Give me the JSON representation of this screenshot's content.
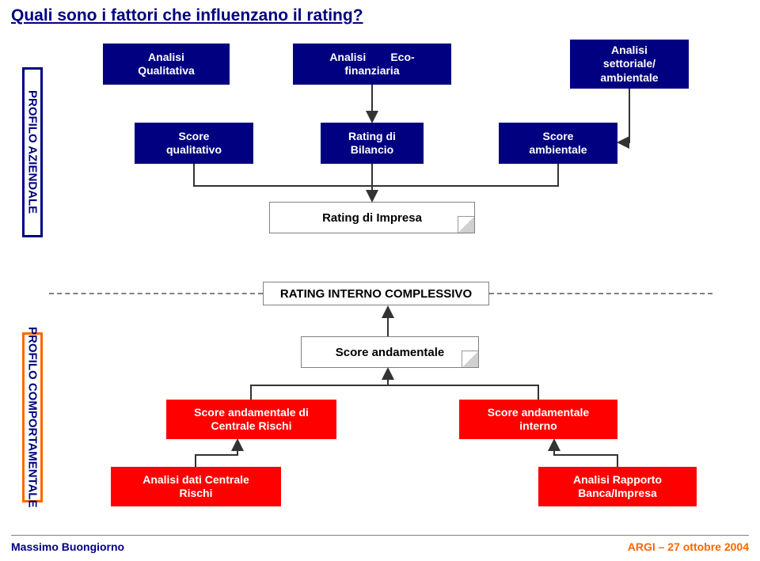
{
  "title": "Quali sono i fattori che influenzano il rating?",
  "sideLabels": {
    "top": "PROFILO AZIENDALE",
    "bottom": "PROFILO COMPORTAMENTALE"
  },
  "layer1": {
    "qualitativa": "Analisi\nQualitativa",
    "eco": "Analisi        Eco-\nfinanziaria",
    "settoriale": "Analisi\nsettoriale/\nambientale"
  },
  "layer2": {
    "scoreQual": "Score\nqualitativo",
    "ratingBil": "Rating di\nBilancio",
    "scoreAmb": "Score\nambientale"
  },
  "layer3": {
    "ratingImpresa": "Rating di Impresa"
  },
  "centerWhite": "RATING INTERNO COMPLESSIVO",
  "layer4": {
    "scoreAnd": "Score andamentale"
  },
  "layer5": {
    "centrale": "Score andamentale di\nCentrale Rischi",
    "interno": "Score andamentale\ninterno"
  },
  "layer6": {
    "datiCentrale": "Analisi dati Centrale\nRischi",
    "rapporto": "Analisi Rapporto\nBanca/Impresa"
  },
  "footer": {
    "left": "Massimo Buongiorno",
    "right": "ARGI – 27 ottobre 2004"
  },
  "colors": {
    "blue": "#000080",
    "orange": "#ff6600",
    "red": "#ff0000",
    "grey": "#808080",
    "arrowDark": "#333333",
    "white": "#ffffff"
  }
}
